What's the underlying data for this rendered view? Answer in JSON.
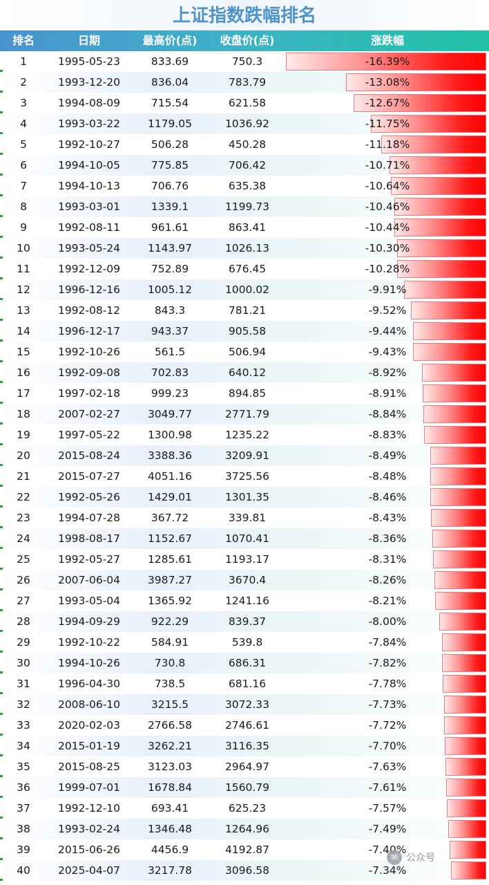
{
  "title": "上证指数跌幅排名",
  "headers": {
    "rank": "排名",
    "date": "日期",
    "high": "最高价(点)",
    "close": "收盘价(点)",
    "change": "涨跌幅"
  },
  "colors": {
    "bar_red": "#ff0000",
    "bar_light": "#ffe9e9",
    "header_start": "#4a92cf",
    "header_end": "#22c3a6",
    "title": "#4f93c9"
  },
  "rows": [
    {
      "rank": "1",
      "date": "1995-05-23",
      "high": "833.69",
      "close": "750.3",
      "change": "-16.39%",
      "pct": 16.39
    },
    {
      "rank": "2",
      "date": "1993-12-20",
      "high": "836.04",
      "close": "783.79",
      "change": "-13.08%",
      "pct": 13.08
    },
    {
      "rank": "3",
      "date": "1994-08-09",
      "high": "715.54",
      "close": "621.58",
      "change": "-12.67%",
      "pct": 12.67
    },
    {
      "rank": "4",
      "date": "1993-03-22",
      "high": "1179.05",
      "close": "1036.92",
      "change": "-11.75%",
      "pct": 11.75
    },
    {
      "rank": "5",
      "date": "1992-10-27",
      "high": "506.28",
      "close": "450.28",
      "change": "-11.18%",
      "pct": 11.18
    },
    {
      "rank": "6",
      "date": "1994-10-05",
      "high": "775.85",
      "close": "706.42",
      "change": "-10.71%",
      "pct": 10.71
    },
    {
      "rank": "7",
      "date": "1994-10-13",
      "high": "706.76",
      "close": "635.38",
      "change": "-10.64%",
      "pct": 10.64
    },
    {
      "rank": "8",
      "date": "1993-03-01",
      "high": "1339.1",
      "close": "1199.73",
      "change": "-10.46%",
      "pct": 10.46
    },
    {
      "rank": "9",
      "date": "1992-08-11",
      "high": "961.61",
      "close": "863.41",
      "change": "-10.44%",
      "pct": 10.44
    },
    {
      "rank": "10",
      "date": "1993-05-24",
      "high": "1143.97",
      "close": "1026.13",
      "change": "-10.30%",
      "pct": 10.3
    },
    {
      "rank": "11",
      "date": "1992-12-09",
      "high": "752.89",
      "close": "676.45",
      "change": "-10.28%",
      "pct": 10.28
    },
    {
      "rank": "12",
      "date": "1996-12-16",
      "high": "1005.12",
      "close": "1000.02",
      "change": "-9.91%",
      "pct": 9.91
    },
    {
      "rank": "13",
      "date": "1992-08-12",
      "high": "843.3",
      "close": "781.21",
      "change": "-9.52%",
      "pct": 9.52
    },
    {
      "rank": "14",
      "date": "1996-12-17",
      "high": "943.37",
      "close": "905.58",
      "change": "-9.44%",
      "pct": 9.44
    },
    {
      "rank": "15",
      "date": "1992-10-26",
      "high": "561.5",
      "close": "506.94",
      "change": "-9.43%",
      "pct": 9.43
    },
    {
      "rank": "16",
      "date": "1992-09-08",
      "high": "702.83",
      "close": "640.12",
      "change": "-8.92%",
      "pct": 8.92
    },
    {
      "rank": "17",
      "date": "1997-02-18",
      "high": "999.23",
      "close": "894.85",
      "change": "-8.91%",
      "pct": 8.91
    },
    {
      "rank": "18",
      "date": "2007-02-27",
      "high": "3049.77",
      "close": "2771.79",
      "change": "-8.84%",
      "pct": 8.84
    },
    {
      "rank": "19",
      "date": "1997-05-22",
      "high": "1300.98",
      "close": "1235.22",
      "change": "-8.83%",
      "pct": 8.83
    },
    {
      "rank": "20",
      "date": "2015-08-24",
      "high": "3388.36",
      "close": "3209.91",
      "change": "-8.49%",
      "pct": 8.49
    },
    {
      "rank": "21",
      "date": "2015-07-27",
      "high": "4051.16",
      "close": "3725.56",
      "change": "-8.48%",
      "pct": 8.48
    },
    {
      "rank": "22",
      "date": "1992-05-26",
      "high": "1429.01",
      "close": "1301.35",
      "change": "-8.46%",
      "pct": 8.46
    },
    {
      "rank": "23",
      "date": "1994-07-28",
      "high": "367.72",
      "close": "339.81",
      "change": "-8.43%",
      "pct": 8.43
    },
    {
      "rank": "24",
      "date": "1998-08-17",
      "high": "1152.67",
      "close": "1070.41",
      "change": "-8.36%",
      "pct": 8.36
    },
    {
      "rank": "25",
      "date": "1992-05-27",
      "high": "1285.61",
      "close": "1193.17",
      "change": "-8.31%",
      "pct": 8.31
    },
    {
      "rank": "26",
      "date": "2007-06-04",
      "high": "3987.27",
      "close": "3670.4",
      "change": "-8.26%",
      "pct": 8.26
    },
    {
      "rank": "27",
      "date": "1993-05-04",
      "high": "1365.92",
      "close": "1241.16",
      "change": "-8.21%",
      "pct": 8.21
    },
    {
      "rank": "28",
      "date": "1994-09-29",
      "high": "922.29",
      "close": "839.37",
      "change": "-8.00%",
      "pct": 8.0
    },
    {
      "rank": "29",
      "date": "1992-10-22",
      "high": "584.91",
      "close": "539.8",
      "change": "-7.84%",
      "pct": 7.84
    },
    {
      "rank": "30",
      "date": "1994-10-26",
      "high": "730.8",
      "close": "686.31",
      "change": "-7.82%",
      "pct": 7.82
    },
    {
      "rank": "31",
      "date": "1996-04-30",
      "high": "738.5",
      "close": "681.16",
      "change": "-7.78%",
      "pct": 7.78
    },
    {
      "rank": "32",
      "date": "2008-06-10",
      "high": "3215.5",
      "close": "3072.33",
      "change": "-7.73%",
      "pct": 7.73
    },
    {
      "rank": "33",
      "date": "2020-02-03",
      "high": "2766.58",
      "close": "2746.61",
      "change": "-7.72%",
      "pct": 7.72
    },
    {
      "rank": "34",
      "date": "2015-01-19",
      "high": "3262.21",
      "close": "3116.35",
      "change": "-7.70%",
      "pct": 7.7
    },
    {
      "rank": "35",
      "date": "2015-08-25",
      "high": "3123.03",
      "close": "2964.97",
      "change": "-7.63%",
      "pct": 7.63
    },
    {
      "rank": "36",
      "date": "1999-07-01",
      "high": "1678.84",
      "close": "1560.79",
      "change": "-7.61%",
      "pct": 7.61
    },
    {
      "rank": "37",
      "date": "1992-12-10",
      "high": "693.41",
      "close": "625.23",
      "change": "-7.57%",
      "pct": 7.57
    },
    {
      "rank": "38",
      "date": "1993-02-24",
      "high": "1346.48",
      "close": "1264.96",
      "change": "-7.49%",
      "pct": 7.49
    },
    {
      "rank": "39",
      "date": "2015-06-26",
      "high": "4456.9",
      "close": "4192.87",
      "change": "-7.40%",
      "pct": 7.4
    },
    {
      "rank": "40",
      "date": "2025-04-07",
      "high": "3217.78",
      "close": "3096.58",
      "change": "-7.34%",
      "pct": 7.34
    }
  ],
  "watermark": {
    "text": "公众号",
    "icon": "wechat-icon"
  }
}
